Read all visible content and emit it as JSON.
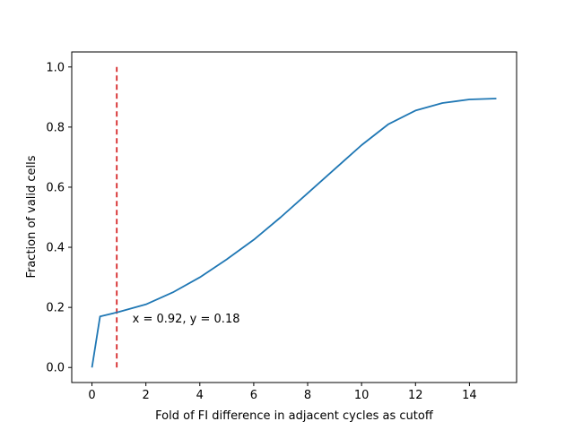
{
  "chart_data": {
    "type": "line",
    "title": "",
    "xlabel": "Fold of FI difference in adjacent cycles as cutoff",
    "ylabel": "Fraction of valid cells",
    "xlim": [
      -0.75,
      15.75
    ],
    "ylim": [
      -0.05,
      1.05
    ],
    "xticks": [
      0,
      2,
      4,
      6,
      8,
      10,
      12,
      14
    ],
    "yticks": [
      0.0,
      0.2,
      0.4,
      0.6,
      0.8,
      1.0
    ],
    "xtick_labels": [
      "0",
      "2",
      "4",
      "6",
      "8",
      "10",
      "12",
      "14"
    ],
    "ytick_labels": [
      "0.0",
      "0.2",
      "0.4",
      "0.6",
      "0.8",
      "1.0"
    ],
    "grid": false,
    "series": [
      {
        "name": "fraction of valid cells",
        "color": "#1f77b4",
        "x": [
          0,
          0.3,
          1,
          2,
          3,
          4,
          5,
          6,
          7,
          8,
          9,
          10,
          11,
          12,
          13,
          14,
          15
        ],
        "y": [
          0.0,
          0.17,
          0.185,
          0.21,
          0.25,
          0.3,
          0.36,
          0.425,
          0.5,
          0.58,
          0.66,
          0.74,
          0.81,
          0.855,
          0.88,
          0.892,
          0.895
        ]
      }
    ],
    "vline": {
      "x": 0.92,
      "y_range": [
        0.0,
        1.0
      ],
      "color": "#d62728",
      "style": "dashed"
    },
    "annotation": {
      "text": "x = 0.92, y = 0.18",
      "x": 1.5,
      "y": 0.15
    }
  }
}
